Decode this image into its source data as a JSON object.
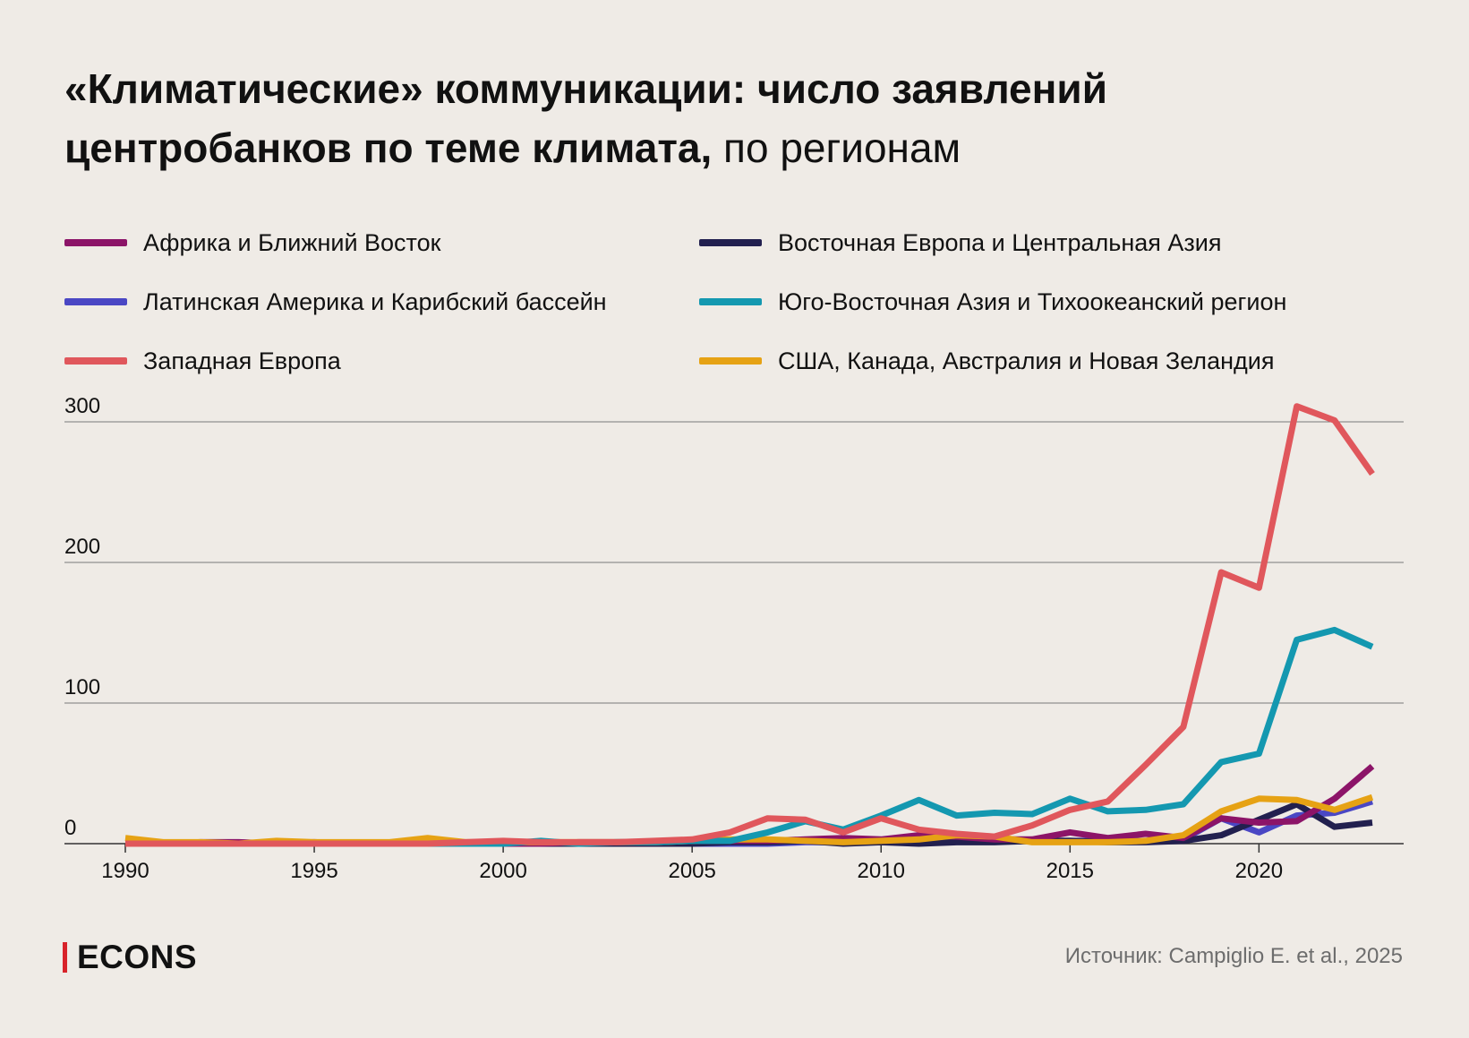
{
  "title": {
    "bold": "«Климатические» коммуникации: число заявлений центробанков по теме климата,",
    "light": " по регионам"
  },
  "footer": {
    "brand": "ECONS",
    "source": "Источник: Campiglio E. et al., 2025"
  },
  "chart_data": {
    "type": "line",
    "title": "«Климатические» коммуникации: число заявлений центробанков по теме климата, по регионам",
    "xlabel": "",
    "ylabel": "",
    "xlim": [
      1990,
      2023
    ],
    "ylim": [
      0,
      300
    ],
    "x_ticks": [
      1990,
      1995,
      2000,
      2005,
      2010,
      2015,
      2020
    ],
    "y_ticks": [
      0,
      100,
      200,
      300
    ],
    "grid": "horizontal",
    "legend_position": "top",
    "x": [
      1990,
      1991,
      1992,
      1993,
      1994,
      1995,
      1996,
      1997,
      1998,
      1999,
      2000,
      2001,
      2002,
      2003,
      2004,
      2005,
      2006,
      2007,
      2008,
      2009,
      2010,
      2011,
      2012,
      2013,
      2014,
      2015,
      2016,
      2017,
      2018,
      2019,
      2020,
      2021,
      2022,
      2023
    ],
    "series": [
      {
        "name": "Африка и Ближний Восток",
        "color": "#8c1468",
        "values": [
          0,
          0,
          1,
          1,
          0,
          1,
          0,
          0,
          1,
          0,
          0,
          0,
          1,
          1,
          1,
          2,
          2,
          2,
          3,
          4,
          3,
          6,
          5,
          3,
          3,
          8,
          4,
          7,
          4,
          18,
          15,
          16,
          32,
          55
        ]
      },
      {
        "name": "Восточная Европа и Центральная Азия",
        "color": "#22204f",
        "values": [
          0,
          0,
          0,
          0,
          0,
          0,
          0,
          0,
          0,
          0,
          0,
          0,
          0,
          0,
          0,
          0,
          1,
          1,
          2,
          0,
          1,
          0,
          1,
          1,
          2,
          2,
          1,
          1,
          2,
          6,
          17,
          28,
          12,
          15
        ]
      },
      {
        "name": "Латинская Америка и Карибский бассейн",
        "color": "#4a47c4",
        "values": [
          0,
          0,
          0,
          0,
          0,
          0,
          0,
          0,
          0,
          0,
          0,
          0,
          0,
          0,
          0,
          0,
          0,
          0,
          1,
          1,
          1,
          2,
          2,
          2,
          2,
          2,
          2,
          2,
          3,
          18,
          8,
          20,
          22,
          30
        ]
      },
      {
        "name": "Юго-Восточная Азия и Тихоокеанский регион",
        "color": "#1498b0",
        "values": [
          0,
          0,
          0,
          0,
          0,
          0,
          0,
          0,
          0,
          0,
          0,
          2,
          0,
          1,
          1,
          2,
          2,
          8,
          16,
          10,
          20,
          31,
          20,
          22,
          21,
          32,
          23,
          24,
          28,
          58,
          64,
          145,
          152,
          140
        ]
      },
      {
        "name": "Западная Европа",
        "color": "#e0575c",
        "values": [
          0,
          0,
          0,
          0,
          0,
          0,
          0,
          0,
          0,
          1,
          2,
          1,
          1,
          1,
          2,
          3,
          8,
          18,
          17,
          8,
          18,
          10,
          7,
          5,
          13,
          24,
          30,
          56,
          83,
          193,
          182,
          311,
          301,
          263
        ]
      },
      {
        "name": "США, Канада, Австралия и Новая Зеландия",
        "color": "#e6a214",
        "values": [
          4,
          1,
          1,
          0,
          2,
          1,
          1,
          1,
          4,
          1,
          1,
          1,
          1,
          1,
          1,
          2,
          3,
          3,
          2,
          1,
          2,
          3,
          6,
          5,
          1,
          1,
          1,
          2,
          6,
          23,
          32,
          31,
          24,
          33
        ]
      }
    ]
  }
}
